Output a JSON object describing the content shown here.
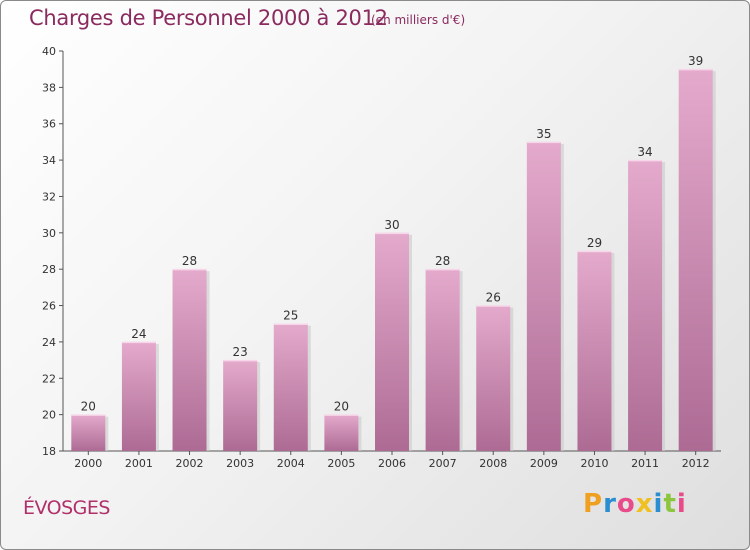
{
  "header": {
    "title": "Charges de Personnel 2000 à 2012",
    "subtitle": "(en milliers d'€)"
  },
  "footer": {
    "commune": "ÉVOSGES",
    "logo_text": "Proxiti"
  },
  "colors": {
    "title": "#8a2a5e",
    "bar_top": "#e2a6c9",
    "bar_bottom": "#b06e97",
    "logo": [
      "#f0a020",
      "#2a8ed0",
      "#e84a8a",
      "#f0c020",
      "#2a8ed0",
      "#8cc63e",
      "#e84a8a"
    ]
  },
  "chart_data": {
    "type": "bar",
    "categories": [
      "2000",
      "2001",
      "2002",
      "2003",
      "2004",
      "2005",
      "2006",
      "2007",
      "2008",
      "2009",
      "2010",
      "2011",
      "2012"
    ],
    "values": [
      20,
      24,
      28,
      23,
      25,
      20,
      30,
      28,
      26,
      35,
      29,
      34,
      39
    ],
    "ylim": [
      18,
      40
    ],
    "yticks": [
      18,
      20,
      22,
      24,
      26,
      28,
      30,
      32,
      34,
      36,
      38,
      40
    ],
    "grid": false,
    "data_labels": true
  }
}
